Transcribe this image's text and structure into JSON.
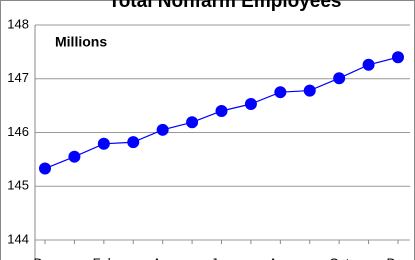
{
  "chart_data": {
    "type": "line",
    "title": "Total Nonfarm Employees",
    "annotation": "Millions",
    "categories": [
      "Dec",
      null,
      "Feb",
      null,
      "Apr",
      null,
      "Jun",
      null,
      "Aug",
      null,
      "Oct",
      null,
      "Dec"
    ],
    "series": [
      {
        "name": "Total Nonfarm Employees",
        "color": "#0000ff",
        "values": [
          145.33,
          145.55,
          145.79,
          145.82,
          146.05,
          146.19,
          146.4,
          146.53,
          146.75,
          146.78,
          147.01,
          147.26,
          147.4
        ]
      }
    ],
    "ylim": [
      144,
      148
    ],
    "yticks": [
      144,
      145,
      146,
      147,
      148
    ],
    "grid": true
  }
}
